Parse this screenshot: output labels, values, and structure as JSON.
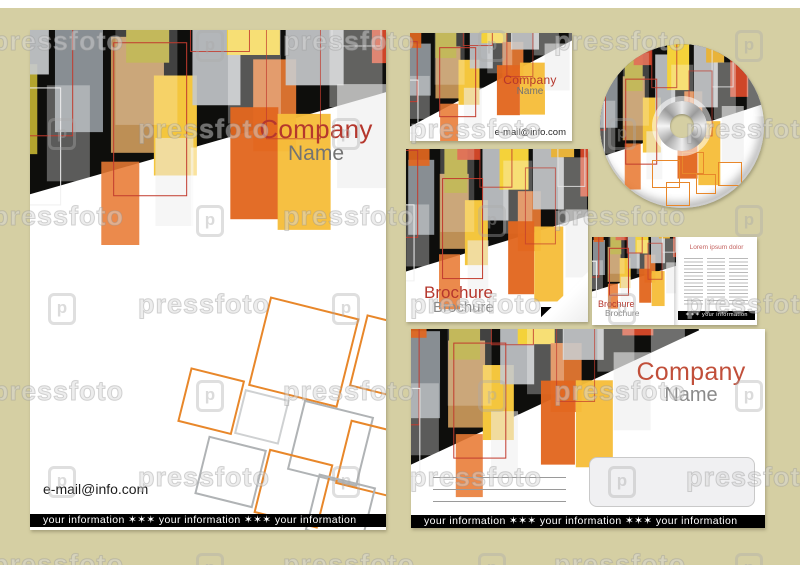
{
  "canvas": {
    "background_color": "#d5cfa3",
    "paper_color": "#ffffff",
    "bar_color": "#000000"
  },
  "palette": {
    "red_text": "#b5372d",
    "gray_text": "#737373",
    "orange": "#e8872a",
    "yellow": "#f4d23a",
    "olive": "#b3a42e",
    "red_square": "#d94a2a",
    "black_band": "#0e0e0c"
  },
  "watermark": {
    "text": "pressfoto",
    "logo_letter": "p"
  },
  "letterhead": {
    "company": "Company",
    "name": "Name",
    "email": "e-mail@info.com",
    "bar_text": "your information  ✶✶✶   your information  ✶✶✶   your information"
  },
  "business_card": {
    "company": "Company",
    "name": "Name",
    "email": "e-mail@info.com"
  },
  "cd": {
    "label": ""
  },
  "brochure": {
    "title_primary": "Brochure",
    "title_secondary": "Brochure",
    "bar_text": "✶✶✶"
  },
  "spread": {
    "title_primary": "Brochure",
    "title_secondary": "Brochure",
    "page_title": "Lorem ipsum dolor",
    "bar_text": "✶✶✶   your information   ✶✶✶"
  },
  "envelope": {
    "company": "Company",
    "name": "Name",
    "bar_text": "your information  ✶✶✶   your information  ✶✶✶   your information"
  }
}
